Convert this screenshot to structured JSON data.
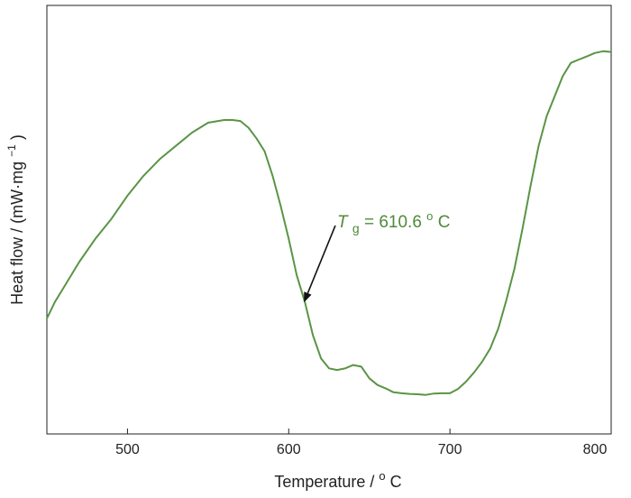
{
  "chart_data": {
    "type": "line",
    "xlabel_main": "Temperature / ",
    "xlabel_sup": "o",
    "xlabel_tail": "C",
    "ylabel_main": "Heat flow / (mW·mg",
    "ylabel_sup": "−1",
    "ylabel_tail": ")",
    "xlim": [
      450,
      800
    ],
    "ylim": [
      0,
      100
    ],
    "x_ticks": [
      "500",
      "600",
      "700",
      "800"
    ],
    "show_y_ticks": false,
    "grid": false,
    "line_color": "#5a9445",
    "annotation": {
      "symbol": "T",
      "subscript": "g",
      "text": " = 610.6 ",
      "sup": "o",
      "unit": "C",
      "x": 610.6
    },
    "series": [
      {
        "x": [
          450,
          455,
          460,
          470,
          480,
          490,
          500,
          510,
          520,
          530,
          540,
          550,
          560,
          565,
          570,
          575,
          580,
          585,
          590,
          595,
          600,
          605,
          610,
          615,
          620,
          625,
          630,
          635,
          640,
          645,
          650,
          655,
          660,
          665,
          670,
          675,
          680,
          685,
          690,
          695,
          700,
          705,
          710,
          715,
          720,
          725,
          730,
          735,
          740,
          745,
          750,
          755,
          760,
          765,
          770,
          775,
          780,
          785,
          790,
          795,
          800
        ],
        "y": [
          19,
          24,
          28,
          36,
          43,
          49,
          56,
          62,
          67,
          71,
          75,
          78,
          78.8,
          78.8,
          78.5,
          76.5,
          73.3,
          69.4,
          62,
          53,
          43,
          32,
          24,
          14,
          7,
          4,
          3.5,
          4,
          5,
          4.5,
          1,
          -1,
          -2,
          -3.2,
          -3.5,
          -3.7,
          -3.8,
          -4,
          -3.6,
          -3.5,
          -3.5,
          -2.2,
          0,
          2.8,
          6,
          10,
          16,
          24.5,
          34,
          46,
          59,
          71,
          80,
          86,
          92,
          96,
          97,
          98,
          99,
          99.5,
          99.3
        ]
      }
    ]
  }
}
